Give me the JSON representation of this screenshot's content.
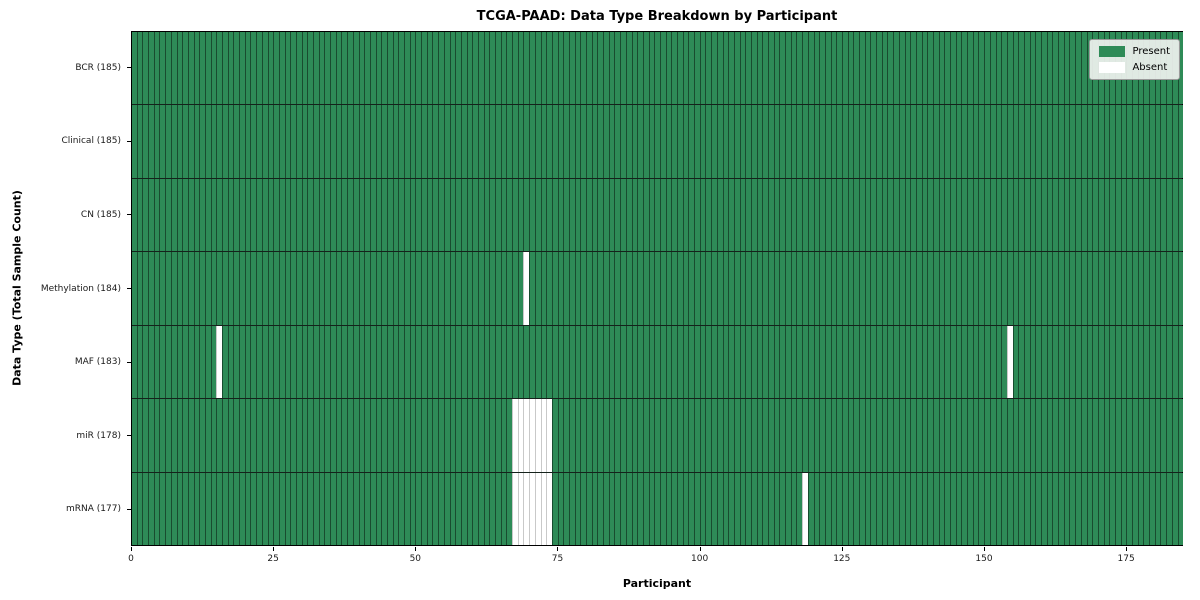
{
  "title": "TCGA-PAAD: Data Type Breakdown by Participant",
  "axes": {
    "x_label": "Participant",
    "y_label": "Data Type (Total Sample Count)",
    "x_ticks": [
      0,
      25,
      50,
      75,
      100,
      125,
      150,
      175
    ]
  },
  "legend": [
    {
      "label": "Present",
      "color": "#2e8b57"
    },
    {
      "label": "Absent",
      "color": "#ffffff"
    }
  ],
  "chart_data": {
    "type": "heatmap",
    "title": "TCGA-PAAD: Data Type Breakdown by Participant",
    "xlabel": "Participant",
    "ylabel": "Data Type (Total Sample Count)",
    "x_range": [
      0,
      185
    ],
    "n_participants": 185,
    "present_color": "#2e8b57",
    "absent_color": "#ffffff",
    "grid": false,
    "legend_position": "upper right",
    "legend_entries": [
      "Present",
      "Absent"
    ],
    "rows": [
      {
        "label": "BCR (185)",
        "data_type": "BCR",
        "total_samples": 185,
        "absent_participants": []
      },
      {
        "label": "Clinical (185)",
        "data_type": "Clinical",
        "total_samples": 185,
        "absent_participants": []
      },
      {
        "label": "CN (185)",
        "data_type": "CN",
        "total_samples": 185,
        "absent_participants": []
      },
      {
        "label": "Methylation (184)",
        "data_type": "Methylation",
        "total_samples": 184,
        "absent_participants": [
          69
        ]
      },
      {
        "label": "MAF (183)",
        "data_type": "MAF",
        "total_samples": 183,
        "absent_participants": [
          15,
          154
        ]
      },
      {
        "label": "miR (178)",
        "data_type": "miR",
        "total_samples": 178,
        "absent_participants": [
          67,
          68,
          69,
          70,
          71,
          72,
          73
        ]
      },
      {
        "label": "mRNA (177)",
        "data_type": "mRNA",
        "total_samples": 177,
        "absent_participants": [
          67,
          68,
          69,
          70,
          71,
          72,
          73,
          118
        ]
      }
    ]
  }
}
